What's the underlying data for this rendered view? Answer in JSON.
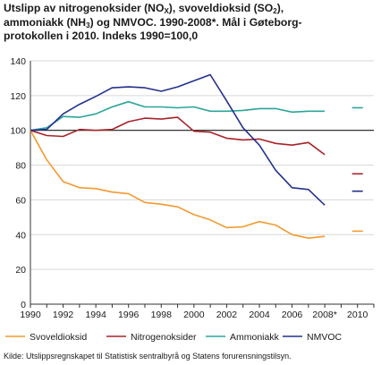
{
  "title": {
    "l1_a": "Utslipp av nitrogenoksider (NO",
    "l1_sub1": "X",
    "l1_b": "), svoveldioksid (SO",
    "l1_sub2": "2",
    "l1_c": "),",
    "l2_a": "ammoniakk (NH",
    "l2_sub": "3",
    "l2_b": ") og NMVOC. 1990-2008*. Mål i Gøteborg-",
    "l3": "protokollen i 2010. Indeks 1990=100,0"
  },
  "source": "Kilde: Utslippsregnskapet til Statistisk sentralbyrå og Statens forurensningstilsyn.",
  "chart_data": {
    "type": "line",
    "x": [
      1990,
      1991,
      1992,
      1993,
      1994,
      1995,
      1996,
      1997,
      1998,
      1999,
      2000,
      2001,
      2002,
      2003,
      2004,
      2005,
      2006,
      2007,
      2008
    ],
    "xticks": [
      "1990",
      "1992",
      "1994",
      "1996",
      "1998",
      "2000",
      "2002",
      "2004",
      "2006",
      "2008*",
      "2010"
    ],
    "ylim": [
      0,
      140
    ],
    "yticks": [
      "0",
      "20",
      "40",
      "60",
      "80",
      "100",
      "120",
      "140"
    ],
    "grid": true,
    "reference_line": 100,
    "legend_position": "bottom",
    "series": [
      {
        "name": "Svoveldioksid",
        "color": "#f39a2e",
        "values": [
          100,
          83,
          70.5,
          67,
          66.5,
          64.5,
          63.5,
          58.5,
          57.5,
          56,
          51.5,
          48.5,
          44,
          44.5,
          47.5,
          45.5,
          40,
          38,
          39
        ],
        "target_2010": 42
      },
      {
        "name": "Nitrogenoksider",
        "color": "#a8232a",
        "values": [
          100,
          97,
          96.5,
          100.5,
          100,
          100.5,
          105,
          107,
          106.5,
          107.5,
          99.5,
          99,
          95.5,
          94.5,
          95,
          92.5,
          91.5,
          93,
          86
        ],
        "target_2010": 75
      },
      {
        "name": "Ammoniakk",
        "color": "#2aa598",
        "values": [
          100,
          101.5,
          108,
          107.5,
          109.5,
          113.5,
          116.5,
          113.5,
          113.5,
          113,
          113.5,
          111,
          111,
          111.5,
          112.5,
          112.5,
          110.5,
          111,
          111
        ],
        "target_2010": 113
      },
      {
        "name": "NMVOC",
        "color": "#23318a",
        "values": [
          100,
          100.5,
          109.5,
          115,
          119.5,
          124.5,
          125,
          124.5,
          122.5,
          125,
          128.5,
          132,
          117,
          101.5,
          91.5,
          77,
          67,
          66,
          57
        ],
        "target_2010": 65
      }
    ]
  }
}
